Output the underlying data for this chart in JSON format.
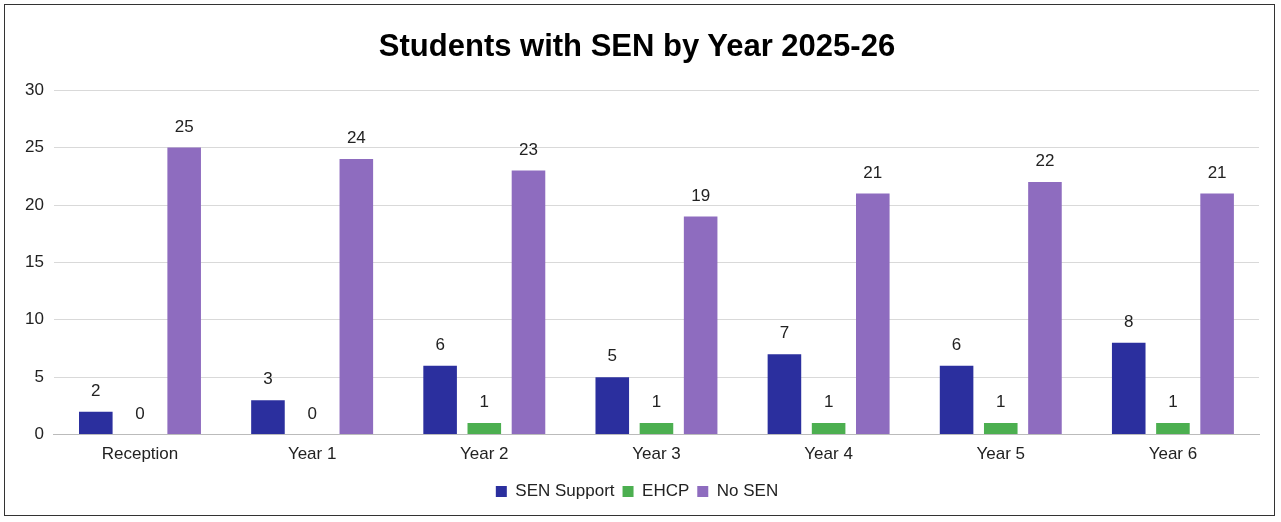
{
  "chart_data": {
    "type": "bar",
    "title": "Students with SEN by Year 2025-26",
    "categories": [
      "Reception",
      "Year 1",
      "Year 2",
      "Year 3",
      "Year 4",
      "Year 5",
      "Year 6"
    ],
    "series": [
      {
        "name": "SEN Support",
        "color": "#2b2f9e",
        "values": [
          2,
          3,
          6,
          5,
          7,
          6,
          8
        ]
      },
      {
        "name": "EHCP",
        "color": "#4caf50",
        "values": [
          0,
          0,
          1,
          1,
          1,
          1,
          1
        ]
      },
      {
        "name": "No SEN",
        "color": "#8e6cbf",
        "values": [
          25,
          24,
          23,
          19,
          21,
          22,
          21
        ]
      }
    ],
    "ylim": [
      0,
      30
    ],
    "yticks": [
      0,
      5,
      10,
      15,
      20,
      25,
      30
    ],
    "grid": "y",
    "legend": "bottom",
    "data_labels": true
  }
}
